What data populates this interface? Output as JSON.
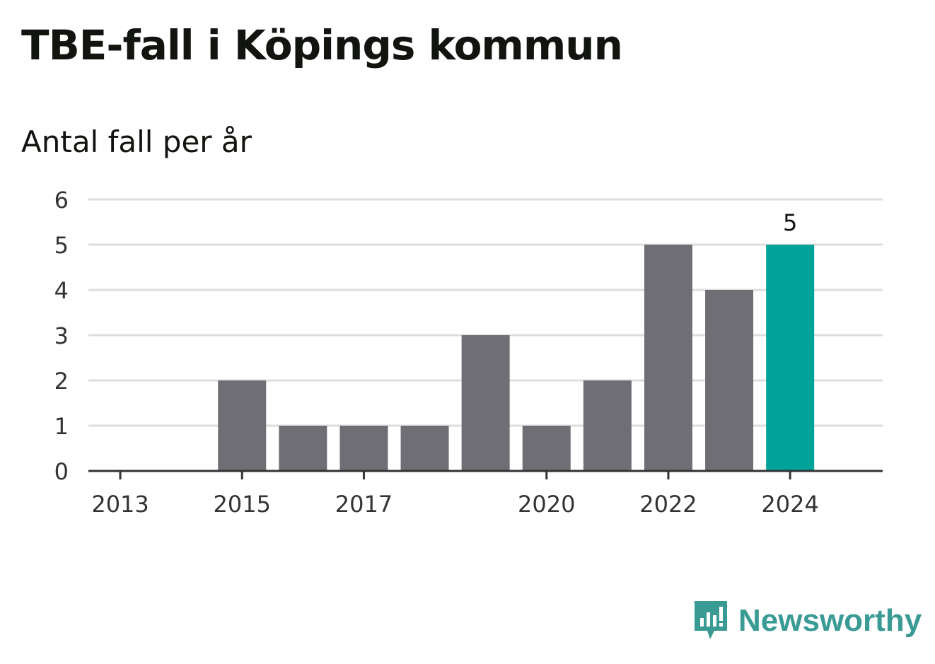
{
  "title": "TBE-fall i Köpings kommun",
  "subtitle": "Antal fall per år",
  "brand": {
    "name": "Newsworthy",
    "icon": "newsworthy-logo-icon",
    "color": "#3a9a94"
  },
  "chart_data": {
    "type": "bar",
    "categories": [
      "2013",
      "2014",
      "2015",
      "2016",
      "2017",
      "2018",
      "2019",
      "2020",
      "2021",
      "2022",
      "2023",
      "2024"
    ],
    "values": [
      0,
      0,
      2,
      1,
      1,
      1,
      3,
      1,
      2,
      5,
      4,
      5
    ],
    "x_tick_labels": [
      "2013",
      "2015",
      "2017",
      "2020",
      "2022",
      "2024"
    ],
    "y_ticks": [
      0,
      1,
      2,
      3,
      4,
      5,
      6
    ],
    "ylim": [
      0,
      6
    ],
    "grid": true,
    "highlight": {
      "category": "2024",
      "value": 5,
      "label": "5"
    },
    "colors": {
      "bar": "#6f6e74",
      "highlight": "#00a39a",
      "grid": "#dddddd",
      "axis": "#333333"
    }
  }
}
